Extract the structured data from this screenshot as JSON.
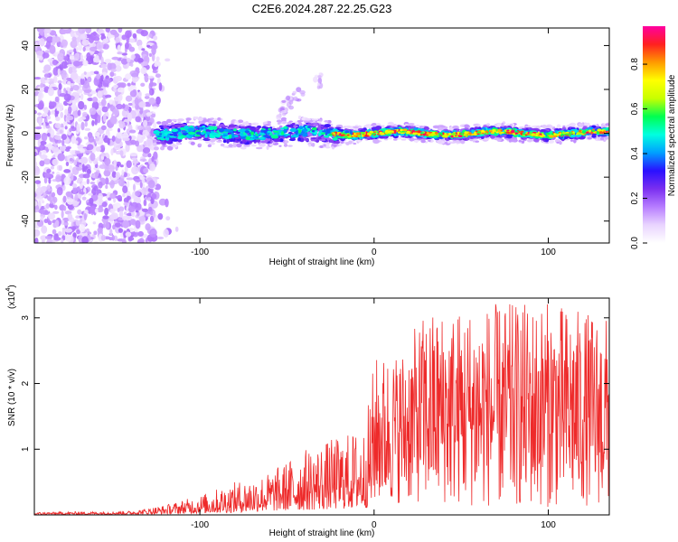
{
  "title": "C2E6.2024.287.22.25.G23",
  "chart_data": [
    {
      "type": "heatmap",
      "xlabel": "Height of straight line (km)",
      "ylabel": "Frequency (Hz)",
      "xlim": [
        -195,
        135
      ],
      "ylim": [
        -50,
        48
      ],
      "x_ticks": [
        -100,
        0,
        100
      ],
      "y_ticks": [
        -40,
        -20,
        0,
        20,
        40
      ],
      "colorbar": {
        "label": "Normalized spectral amplitude",
        "range": [
          0,
          0.97
        ],
        "ticks": [
          0.0,
          0.2,
          0.4,
          0.6,
          0.8
        ],
        "tick_labels": [
          "0.0",
          "0.2",
          "0.4",
          "0.6",
          "0.8"
        ],
        "colors": [
          "#ffffff",
          "#e9d4ff",
          "#b77dff",
          "#7a2ff0",
          "#2a10ff",
          "#00a0ff",
          "#00ffe0",
          "#00ff50",
          "#c8ff00",
          "#ffff00",
          "#ff9a00",
          "#ff2020",
          "#ff00a0"
        ]
      },
      "features": [
        {
          "name": "broadband noise",
          "x_range": [
            -195,
            -125
          ],
          "freq_range": [
            -50,
            48
          ],
          "amplitude": 0.15
        },
        {
          "name": "signal band",
          "x_range": [
            -125,
            135
          ],
          "center_freq": 0,
          "half_width": 4,
          "peak_amplitude": 0.95
        },
        {
          "name": "upper streak",
          "x_range": [
            -55,
            -30
          ],
          "freq_range": [
            10,
            25
          ],
          "amplitude": 0.12
        }
      ]
    },
    {
      "type": "line",
      "xlabel": "Height of straight line (km)",
      "ylabel": "SNR (10 * v/v)",
      "y_multiplier_label": "(x10",
      "y_multiplier_exp": "4",
      "xlim": [
        -195,
        135
      ],
      "ylim": [
        0,
        3.3
      ],
      "x_ticks": [
        -100,
        0,
        100
      ],
      "y_ticks": [
        1,
        2,
        3
      ],
      "color": "#ee2a2a",
      "envelope": [
        {
          "x": -195,
          "base": 0.02,
          "peak": 0.04
        },
        {
          "x": -140,
          "base": 0.03,
          "peak": 0.06
        },
        {
          "x": -120,
          "base": 0.05,
          "peak": 0.15
        },
        {
          "x": -100,
          "base": 0.08,
          "peak": 0.3
        },
        {
          "x": -80,
          "base": 0.12,
          "peak": 0.5
        },
        {
          "x": -60,
          "base": 0.2,
          "peak": 0.65
        },
        {
          "x": -40,
          "base": 0.25,
          "peak": 1.0
        },
        {
          "x": -20,
          "base": 0.3,
          "peak": 1.2
        },
        {
          "x": -5,
          "base": 0.35,
          "peak": 1.35
        },
        {
          "x": 0,
          "base": 0.5,
          "peak": 2.4
        },
        {
          "x": 15,
          "base": 0.6,
          "peak": 2.5
        },
        {
          "x": 30,
          "base": 0.6,
          "peak": 3.1
        },
        {
          "x": 60,
          "base": 0.4,
          "peak": 3.2
        },
        {
          "x": 100,
          "base": 0.4,
          "peak": 3.25
        },
        {
          "x": 135,
          "base": 0.5,
          "peak": 3.0
        }
      ]
    }
  ]
}
